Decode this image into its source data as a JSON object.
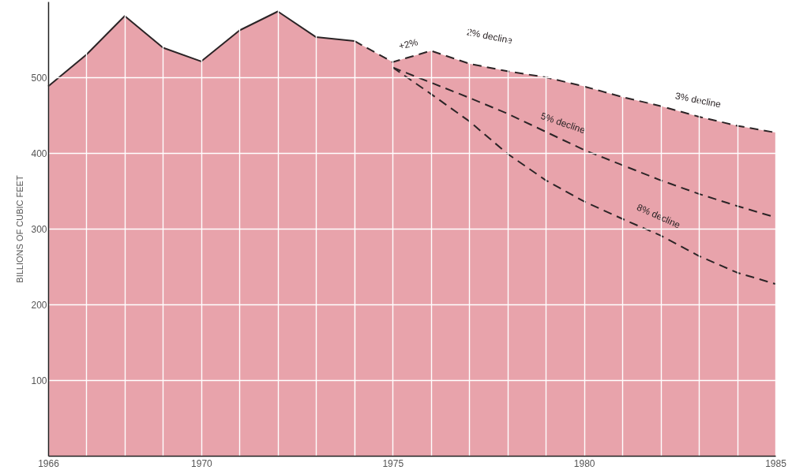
{
  "chart_data": {
    "type": "area",
    "ylabel": "BILLIONS OF CUBIC FEET",
    "xlim": [
      1966,
      1985
    ],
    "xticks": [
      1966,
      {
        "value": 1967,
        "label": null
      },
      {
        "value": 1968,
        "label": null
      },
      {
        "value": 1969,
        "label": null
      },
      1970,
      {
        "value": 1971,
        "label": null
      },
      {
        "value": 1972,
        "label": null
      },
      {
        "value": 1973,
        "label": null
      },
      {
        "value": 1974,
        "label": null
      },
      1975,
      {
        "value": 1976,
        "label": null
      },
      {
        "value": 1977,
        "label": null
      },
      {
        "value": 1978,
        "label": null
      },
      {
        "value": 1979,
        "label": null
      },
      1980,
      {
        "value": 1981,
        "label": null
      },
      {
        "value": 1982,
        "label": null
      },
      {
        "value": 1983,
        "label": null
      },
      {
        "value": 1984,
        "label": null
      },
      1985
    ],
    "ylim": [
      0,
      600
    ],
    "yticks": [
      100,
      200,
      300,
      400,
      500
    ],
    "grid": true,
    "series": [
      {
        "color": "#e8a3ab",
        "line_style": "solid",
        "x": [
          1966,
          1967,
          1968,
          1969,
          1970,
          1971,
          1972,
          1973,
          1974
        ],
        "values": [
          488,
          530,
          581,
          539,
          521,
          562,
          587,
          553,
          548
        ]
      },
      {
        "color": "#e8a3ab",
        "line_style": "dashed",
        "x": [
          1974,
          1975,
          1976,
          1977,
          1978,
          1979,
          1980,
          1981,
          1982,
          1983,
          1984,
          1985
        ],
        "values": [
          548,
          520,
          535,
          518,
          508,
          500,
          488,
          474,
          462,
          448,
          436,
          427
        ]
      },
      {
        "type": "line",
        "color": "#2b2426",
        "line_style": "dashed",
        "x": [
          1975,
          1976,
          1977,
          1978,
          1979,
          1980,
          1981,
          1982,
          1983,
          1984,
          1985
        ],
        "values": [
          513,
          493,
          473,
          452,
          428,
          404,
          384,
          364,
          346,
          330,
          315
        ]
      },
      {
        "type": "line",
        "color": "#2b2426",
        "line_style": "dashed",
        "x": [
          1975,
          1976,
          1977,
          1978,
          1979,
          1980,
          1981,
          1982,
          1983,
          1984,
          1985
        ],
        "values": [
          513,
          478,
          442,
          399,
          364,
          336,
          313,
          291,
          264,
          242,
          227
        ]
      }
    ],
    "annotations": [
      "+2%",
      "2% decline",
      "3% decline",
      "5% decline",
      "8% decline"
    ]
  }
}
